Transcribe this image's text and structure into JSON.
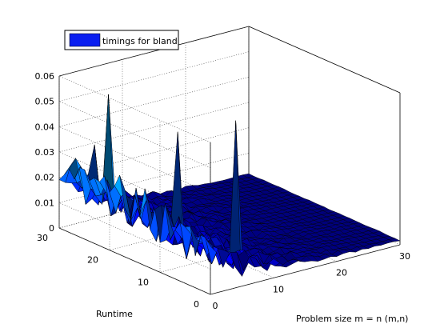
{
  "chart_data": {
    "type": "surface",
    "title": "",
    "legend": {
      "entries": [
        "timings for bland"
      ],
      "placement": "top-left",
      "swatch_color": "#0a1ef0"
    },
    "xlabel": "Problem size m = n (m,n)",
    "ylabel": "Runtime",
    "zlabel": "",
    "xlim": [
      0,
      30
    ],
    "ylim": [
      0,
      30
    ],
    "zlim": [
      0,
      0.06
    ],
    "x_ticks": [
      "0",
      "10",
      "20",
      "30"
    ],
    "y_ticks": [
      "0",
      "10",
      "20",
      "30"
    ],
    "z_ticks": [
      "0",
      "0.01",
      "0.02",
      "0.03",
      "0.04",
      "0.05",
      "0.06"
    ],
    "grid": true,
    "colormap": [
      "#00007f",
      "#0000ff",
      "#007fff",
      "#00ffff",
      "#7fff7f",
      "#ffff00"
    ],
    "surface_description": "Timings decay from about 0.02-0.03 at small problem sizes toward ~0 at large problem sizes; spikes reach ~0.055-0.06.",
    "notable_peaks": [
      {
        "x": 3,
        "y": 24,
        "z": 0.056
      },
      {
        "x": 6,
        "y": 14,
        "z": 0.048
      },
      {
        "x": 8,
        "y": 5,
        "z": 0.059
      },
      {
        "x": 4,
        "y": 28,
        "z": 0.032
      }
    ]
  }
}
